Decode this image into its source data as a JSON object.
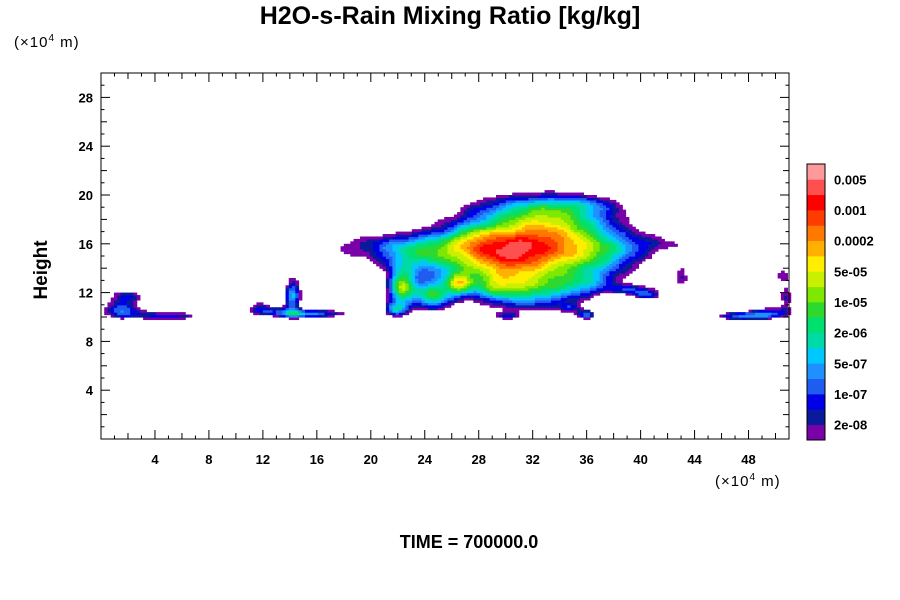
{
  "chart_data": {
    "type": "heatmap",
    "title": "H2O-s-Rain Mixing Ratio [kg/kg]",
    "xlabel": "",
    "ylabel": "Height",
    "x_unit": {
      "prefix": "(×10",
      "exp": "4",
      "suffix": " m)"
    },
    "y_unit": {
      "prefix": "(×10",
      "exp": "4",
      "suffix": " m)"
    },
    "xlim": [
      0,
      51
    ],
    "ylim": [
      0,
      30
    ],
    "x_ticks": [
      4,
      8,
      12,
      16,
      20,
      24,
      28,
      32,
      36,
      40,
      44,
      48
    ],
    "y_ticks": [
      4,
      8,
      12,
      16,
      20,
      24,
      28
    ],
    "legend_position": "right",
    "colorbar": {
      "colors": [
        "#7a00a8",
        "#0a1a9c",
        "#0000e6",
        "#1f5cf0",
        "#1e90ff",
        "#00c8ff",
        "#00d9a8",
        "#00e070",
        "#2ed82e",
        "#7ee800",
        "#c8f000",
        "#ffee00",
        "#ffb000",
        "#ff7800",
        "#ff3c00",
        "#ff0000",
        "#ff5050",
        "#ff9a9a"
      ],
      "labels": [
        "2e-08",
        "1e-07",
        "5e-07",
        "2e-06",
        "1e-05",
        "5e-05",
        "0.0002",
        "0.001",
        "0.005"
      ]
    },
    "field": {
      "base_level": 2.2,
      "blobs": [
        [
          32,
          16.0,
          7.0,
          3.4,
          5.0
        ],
        [
          30,
          14.5,
          4.0,
          2.6,
          3.0
        ],
        [
          34,
          17.5,
          4.5,
          2.2,
          2.6
        ],
        [
          27,
          15.5,
          6.0,
          1.8,
          2.5
        ],
        [
          23,
          14.8,
          3.0,
          1.4,
          2.2
        ],
        [
          37,
          15.0,
          3.5,
          1.6,
          2.4
        ],
        [
          32,
          19.0,
          5.0,
          1.2,
          1.8
        ],
        [
          36,
          19.3,
          3.0,
          0.7,
          1.2
        ],
        [
          20,
          16.0,
          6.0,
          1.0,
          1.8
        ],
        [
          14,
          15.0,
          4.0,
          1.0,
          1.4
        ],
        [
          42,
          16.0,
          4.0,
          0.9,
          1.4
        ],
        [
          47,
          15.9,
          2.5,
          0.5,
          1.0
        ],
        [
          32,
          12.0,
          4.0,
          1.8,
          3.2
        ],
        [
          36,
          12.8,
          2.5,
          1.0,
          2.0
        ],
        [
          29,
          12.5,
          2.0,
          1.0,
          1.8
        ],
        [
          22.3,
          12.4,
          1.1,
          1.6,
          6.0
        ],
        [
          24.6,
          11.8,
          1.4,
          1.3,
          5.2
        ],
        [
          21.8,
          10.6,
          0.9,
          0.6,
          3.6
        ],
        [
          26.5,
          12.8,
          1.0,
          1.0,
          4.0
        ],
        [
          14.2,
          11.8,
          0.7,
          1.6,
          4.4
        ],
        [
          15.5,
          10.3,
          3.0,
          0.4,
          4.2
        ],
        [
          12.0,
          10.6,
          1.6,
          0.5,
          2.6
        ],
        [
          1.5,
          10.6,
          1.8,
          0.8,
          3.8
        ],
        [
          2.0,
          11.7,
          1.5,
          0.5,
          2.6
        ],
        [
          5.2,
          10.1,
          2.8,
          0.4,
          3.2
        ],
        [
          0.8,
          12.4,
          1.4,
          0.6,
          1.4
        ],
        [
          3.0,
          13.6,
          2.8,
          0.5,
          1.0
        ],
        [
          6.0,
          13.3,
          1.8,
          0.3,
          0.8
        ],
        [
          -0.5,
          14.5,
          1.5,
          0.7,
          1.2
        ],
        [
          40.5,
          11.8,
          1.2,
          0.4,
          3.0
        ],
        [
          39.5,
          12.3,
          1.8,
          0.4,
          2.4
        ],
        [
          36.0,
          10.2,
          0.7,
          0.4,
          3.4
        ],
        [
          34.8,
          10.8,
          0.8,
          0.4,
          1.8
        ],
        [
          43.0,
          13.3,
          0.7,
          1.1,
          2.6
        ],
        [
          44.2,
          12.5,
          0.5,
          0.7,
          2.0
        ],
        [
          47.5,
          10.1,
          2.5,
          0.4,
          3.6
        ],
        [
          49.5,
          10.4,
          1.6,
          0.5,
          2.8
        ],
        [
          50.5,
          13.5,
          0.8,
          1.0,
          2.4
        ],
        [
          50.8,
          11.5,
          0.6,
          1.2,
          2.6
        ],
        [
          30.0,
          10.1,
          1.0,
          0.3,
          2.0
        ],
        [
          17.0,
          14.2,
          2.5,
          0.8,
          1.2
        ],
        [
          27.5,
          16.8,
          1.5,
          1.0,
          1.0
        ],
        [
          11.8,
          11.2,
          0.8,
          0.6,
          1.2
        ]
      ]
    }
  },
  "time_label": "TIME = 700000.0"
}
